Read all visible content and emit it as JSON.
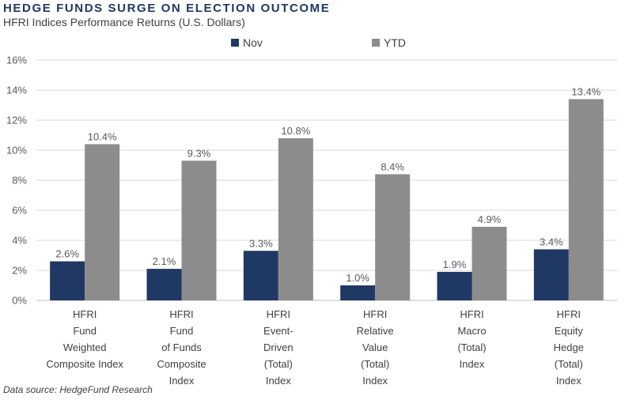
{
  "chart_data": {
    "type": "bar",
    "title": "HEDGE FUNDS SURGE ON ELECTION OUTCOME",
    "subtitle": "HFRI Indices Performance Returns (U.S. Dollars)",
    "source": "Data source: HedgeFund Research",
    "categories": [
      [
        "HFRI",
        "Fund",
        "Weighted",
        "Composite Index"
      ],
      [
        "HFRI",
        "Fund",
        "of Funds",
        "Composite",
        "Index"
      ],
      [
        "HFRI",
        "Event-",
        "Driven",
        "(Total)",
        "Index"
      ],
      [
        "HFRI",
        "Relative",
        "Value",
        "(Total)",
        "Index"
      ],
      [
        "HFRI",
        "Macro",
        "(Total)",
        "Index"
      ],
      [
        "HFRI",
        "Equity",
        "Hedge",
        "(Total)",
        "Index"
      ]
    ],
    "series": [
      {
        "name": "Nov",
        "color": "#203864",
        "values": [
          2.6,
          2.1,
          3.3,
          1.0,
          1.9,
          3.4
        ],
        "labels": [
          "2.6%",
          "2.1%",
          "3.3%",
          "1.0%",
          "1.9%",
          "3.4%"
        ]
      },
      {
        "name": "YTD",
        "color": "#8c8c8c",
        "values": [
          10.4,
          9.3,
          10.8,
          8.4,
          4.9,
          13.4
        ],
        "labels": [
          "10.4%",
          "9.3%",
          "10.8%",
          "8.4%",
          "4.9%",
          "13.4%"
        ]
      }
    ],
    "yticks": [
      "0%",
      "2%",
      "4%",
      "6%",
      "8%",
      "10%",
      "12%",
      "14%",
      "16%"
    ],
    "ylim": [
      0,
      16
    ],
    "xlabel": "",
    "ylabel": "",
    "legend": "top-center",
    "grid": true
  }
}
